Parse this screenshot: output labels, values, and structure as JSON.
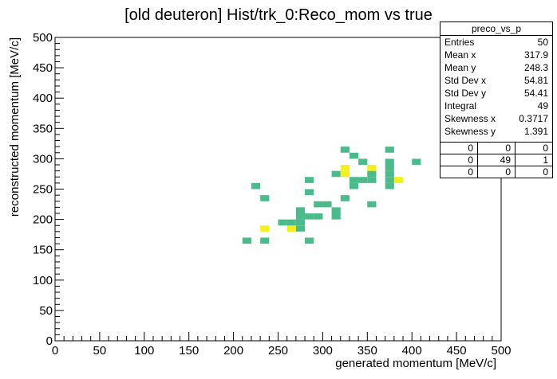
{
  "chart_data": {
    "type": "heatmap",
    "title": "[old deuteron] Hist/trk_0:Reco_mom vs true",
    "xlabel": "generated momentum [MeV/c]",
    "ylabel": "reconstructed momentum [MeV/c]",
    "xlim": [
      0,
      500
    ],
    "ylim": [
      0,
      500
    ],
    "bin_width": 10,
    "x_ticks": [
      "0",
      "50",
      "100",
      "150",
      "200",
      "250",
      "300",
      "350",
      "400",
      "450",
      "500"
    ],
    "y_ticks": [
      "0",
      "50",
      "100",
      "150",
      "200",
      "250",
      "300",
      "350",
      "400",
      "450",
      "500"
    ],
    "colors": {
      "one_entry": "#4cbb8c",
      "two_entries": "#f5f01a",
      "axis": "#000000"
    },
    "bins": [
      {
        "x": 210,
        "y": 160,
        "count": 1
      },
      {
        "x": 230,
        "y": 160,
        "count": 1
      },
      {
        "x": 280,
        "y": 160,
        "count": 1
      },
      {
        "x": 230,
        "y": 180,
        "count": 2
      },
      {
        "x": 260,
        "y": 180,
        "count": 2
      },
      {
        "x": 270,
        "y": 180,
        "count": 1
      },
      {
        "x": 250,
        "y": 190,
        "count": 1
      },
      {
        "x": 260,
        "y": 190,
        "count": 1
      },
      {
        "x": 270,
        "y": 190,
        "count": 1
      },
      {
        "x": 270,
        "y": 200,
        "count": 1
      },
      {
        "x": 280,
        "y": 200,
        "count": 1
      },
      {
        "x": 290,
        "y": 200,
        "count": 1
      },
      {
        "x": 310,
        "y": 200,
        "count": 1
      },
      {
        "x": 270,
        "y": 210,
        "count": 1
      },
      {
        "x": 310,
        "y": 210,
        "count": 1
      },
      {
        "x": 290,
        "y": 220,
        "count": 1
      },
      {
        "x": 300,
        "y": 220,
        "count": 1
      },
      {
        "x": 230,
        "y": 230,
        "count": 1
      },
      {
        "x": 320,
        "y": 230,
        "count": 1
      },
      {
        "x": 350,
        "y": 220,
        "count": 1
      },
      {
        "x": 280,
        "y": 240,
        "count": 1
      },
      {
        "x": 220,
        "y": 250,
        "count": 1
      },
      {
        "x": 330,
        "y": 250,
        "count": 1
      },
      {
        "x": 370,
        "y": 250,
        "count": 1
      },
      {
        "x": 330,
        "y": 260,
        "count": 1
      },
      {
        "x": 340,
        "y": 260,
        "count": 1
      },
      {
        "x": 350,
        "y": 260,
        "count": 1
      },
      {
        "x": 370,
        "y": 260,
        "count": 1
      },
      {
        "x": 380,
        "y": 260,
        "count": 2
      },
      {
        "x": 280,
        "y": 260,
        "count": 1
      },
      {
        "x": 310,
        "y": 270,
        "count": 1
      },
      {
        "x": 320,
        "y": 270,
        "count": 2
      },
      {
        "x": 350,
        "y": 270,
        "count": 1
      },
      {
        "x": 370,
        "y": 270,
        "count": 1
      },
      {
        "x": 320,
        "y": 280,
        "count": 2
      },
      {
        "x": 350,
        "y": 280,
        "count": 2
      },
      {
        "x": 370,
        "y": 280,
        "count": 1
      },
      {
        "x": 340,
        "y": 290,
        "count": 1
      },
      {
        "x": 370,
        "y": 290,
        "count": 1
      },
      {
        "x": 400,
        "y": 290,
        "count": 1
      },
      {
        "x": 330,
        "y": 300,
        "count": 1
      },
      {
        "x": 320,
        "y": 310,
        "count": 1
      },
      {
        "x": 370,
        "y": 310,
        "count": 1
      }
    ]
  },
  "stats_box": {
    "name": "preco_vs_p",
    "rows": [
      {
        "label": "Entries",
        "value": "50"
      },
      {
        "label": "Mean x",
        "value": "317.9"
      },
      {
        "label": "Mean y",
        "value": "248.3"
      },
      {
        "label": "Std Dev x",
        "value": "54.81"
      },
      {
        "label": "Std Dev y",
        "value": "54.41"
      },
      {
        "label": "Integral",
        "value": "49"
      },
      {
        "label": "Skewness x",
        "value": "0.3717"
      },
      {
        "label": "Skewness y",
        "value": "1.391"
      }
    ],
    "overflow_grid": [
      [
        "0",
        "0",
        "0"
      ],
      [
        "0",
        "49",
        "1"
      ],
      [
        "0",
        "0",
        "0"
      ]
    ]
  }
}
